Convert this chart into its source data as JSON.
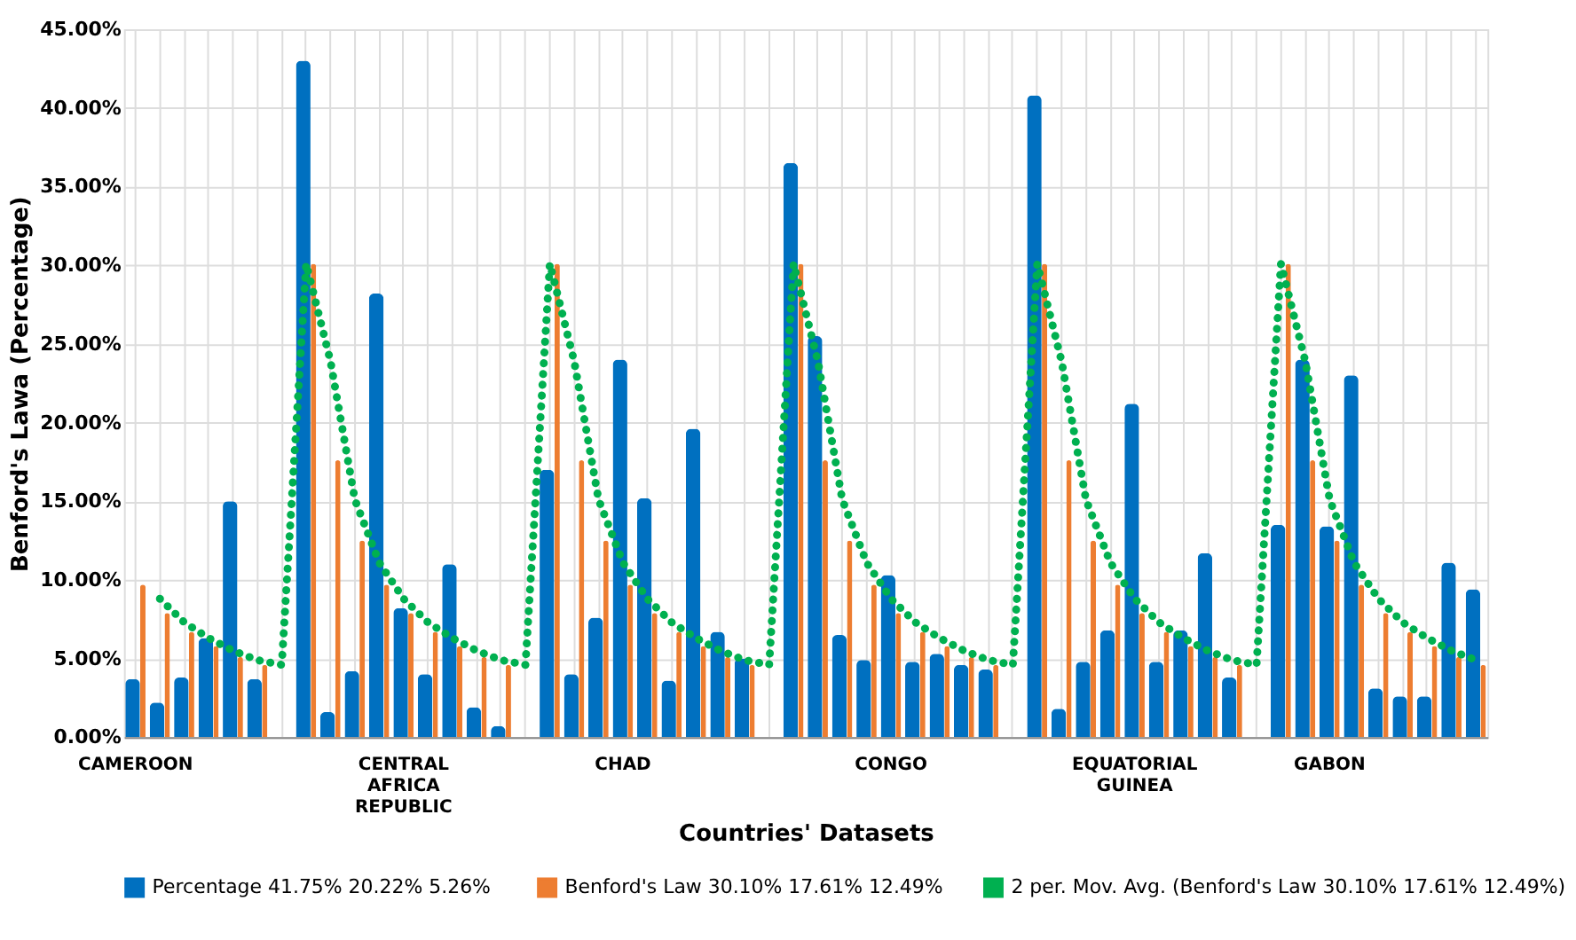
{
  "chart_data": {
    "type": "bar",
    "xlabel": "Countries' Datasets",
    "ylabel": "Benford's Lawa (Percentage)",
    "categories": [
      "CAMEROON",
      null,
      null,
      null,
      null,
      null,
      null,
      null,
      null,
      null,
      null,
      "CENTRAL AFRICA REPUBLIC",
      null,
      null,
      null,
      null,
      null,
      null,
      null,
      null,
      "CHAD",
      null,
      null,
      null,
      null,
      null,
      null,
      null,
      null,
      null,
      null,
      "CONGO",
      null,
      null,
      null,
      null,
      null,
      null,
      null,
      null,
      null,
      "EQUATORIAL GUINEA",
      null,
      null,
      null,
      null,
      null,
      null,
      null,
      "GABON",
      null,
      null,
      null,
      null,
      null,
      null
    ],
    "series": [
      {
        "name": "Percentage  41.75% 20.22% 5.26%",
        "color": "#0070c0",
        "values": [
          3.7,
          2.2,
          3.8,
          6.3,
          15.0,
          3.7,
          null,
          43.0,
          1.6,
          4.2,
          28.2,
          8.2,
          4.0,
          11.0,
          1.9,
          0.7,
          null,
          17.0,
          4.0,
          7.6,
          24.0,
          15.2,
          3.6,
          19.6,
          6.7,
          5.0,
          null,
          36.5,
          25.5,
          6.5,
          4.9,
          10.3,
          4.8,
          5.3,
          4.6,
          4.3,
          null,
          40.8,
          1.8,
          4.8,
          6.8,
          21.2,
          4.8,
          6.8,
          11.7,
          3.8,
          null,
          13.5,
          24.0,
          13.4,
          23.0,
          3.1,
          2.6,
          2.6,
          11.1,
          9.4
        ]
      },
      {
        "name": "Benford's Law 30.10% 17.61% 12.49%",
        "color": "#ed7d31",
        "values": [
          9.7,
          7.9,
          6.7,
          5.8,
          5.1,
          4.6,
          null,
          30.1,
          17.6,
          12.5,
          9.7,
          7.9,
          6.7,
          5.8,
          5.1,
          4.6,
          null,
          30.1,
          17.6,
          12.5,
          9.7,
          7.9,
          6.7,
          5.8,
          5.1,
          4.6,
          null,
          30.1,
          17.6,
          12.5,
          9.7,
          7.9,
          6.7,
          5.8,
          5.1,
          4.6,
          null,
          30.1,
          17.6,
          12.5,
          9.7,
          7.9,
          6.7,
          5.8,
          5.1,
          4.6,
          null,
          30.1,
          17.6,
          12.5,
          9.7,
          7.9,
          6.7,
          5.8,
          5.1,
          4.6
        ]
      },
      {
        "name": "2 per. Mov. Avg. (Benford's Law 30.10% 17.61% 12.49%)",
        "type": "line",
        "line_style": "dotted",
        "color": "#00b050",
        "values": [
          null,
          8.8,
          7.3,
          6.3,
          5.5,
          4.9,
          4.6,
          30.1,
          23.9,
          15.1,
          11.1,
          8.8,
          7.3,
          6.3,
          5.5,
          4.9,
          4.6,
          30.1,
          23.9,
          15.1,
          11.1,
          8.8,
          7.3,
          6.3,
          5.5,
          4.9,
          4.6,
          30.1,
          23.9,
          15.1,
          11.1,
          8.8,
          7.3,
          6.3,
          5.5,
          4.9,
          4.6,
          30.1,
          23.9,
          15.1,
          11.1,
          8.8,
          7.3,
          6.3,
          5.5,
          4.9,
          4.6,
          30.1,
          23.9,
          15.1,
          11.1,
          8.8,
          7.3,
          6.3,
          5.5,
          4.9
        ]
      }
    ],
    "ylim": [
      0,
      45
    ],
    "yticks": [
      {
        "value": 0,
        "label": "0.00%"
      },
      {
        "value": 5,
        "label": "5.00%"
      },
      {
        "value": 10,
        "label": "10.00%"
      },
      {
        "value": 15,
        "label": "15.00%"
      },
      {
        "value": 20,
        "label": "20.00%"
      },
      {
        "value": 25,
        "label": "25.00%"
      },
      {
        "value": 30,
        "label": "30.00%"
      },
      {
        "value": 35,
        "label": "35.00%"
      },
      {
        "value": 40,
        "label": "40.00%"
      },
      {
        "value": 45,
        "label": "45.00%"
      }
    ],
    "grid": true,
    "legend": "bottom"
  }
}
